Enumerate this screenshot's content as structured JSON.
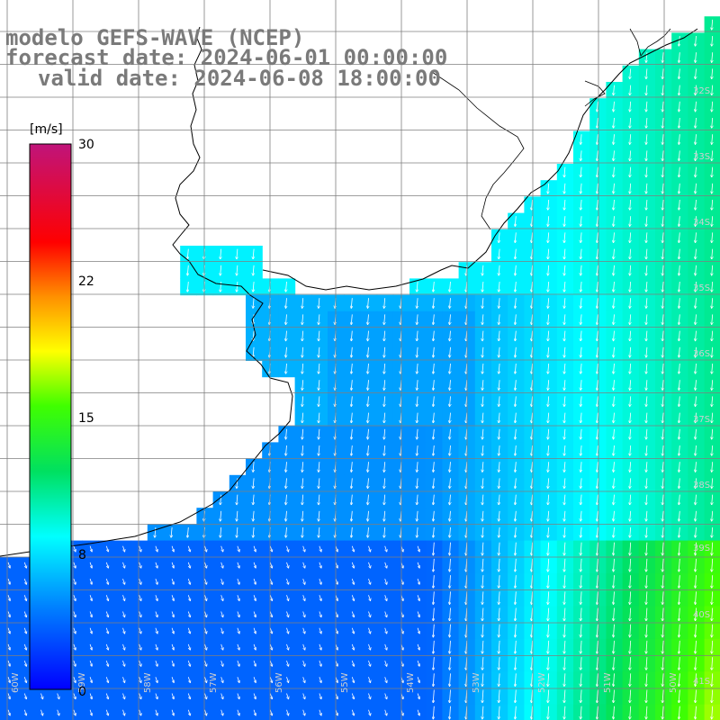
{
  "header": {
    "line1": "modelo GEFS-WAVE (NCEP)",
    "line2": "forecast date: 2024-06-01 00:00:00",
    "line3": "valid date: 2024-06-08 18:00:00"
  },
  "colorbar": {
    "unit": "[m/s]",
    "ticks": [
      "30",
      "22",
      "15",
      "8",
      "0"
    ],
    "tick_values": [
      30,
      22,
      15,
      8,
      0
    ],
    "range": [
      0,
      30
    ]
  },
  "grid": {
    "lat_labels": [
      "32S",
      "33S",
      "34S",
      "35S",
      "36S",
      "37S",
      "38S",
      "39S",
      "40S",
      "41S"
    ],
    "lon_labels": [
      "60W",
      "59W",
      "58W",
      "57W",
      "56W",
      "55W",
      "54W",
      "53W",
      "52W",
      "51W",
      "50W"
    ]
  },
  "colors": {
    "land": "#ffffff",
    "grid": "#7f7f7f",
    "coast": "#000000",
    "arrows": "#ffffff",
    "label_text": "#7a7a7a"
  }
}
